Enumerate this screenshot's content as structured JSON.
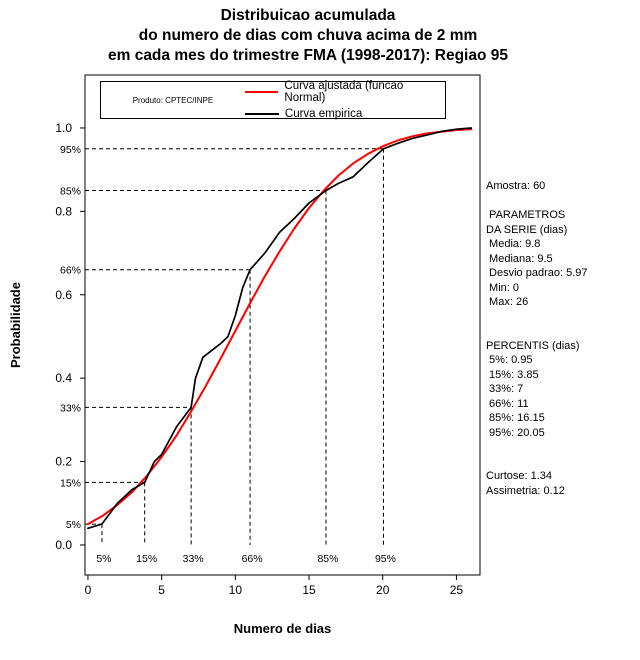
{
  "title": {
    "line1": "Distribuicao acumulada",
    "line2": "do numero de dias com chuva acima de 2 mm",
    "line3": "em cada mes do trimestre FMA (1998-2017): Regiao 95"
  },
  "legend": {
    "product_label": "Produto: CPTEC/INPE",
    "items": [
      {
        "label": "Curva ajustada (funcao Normal)",
        "color": "#ff0000"
      },
      {
        "label": "Curva empirica",
        "color": "#000000"
      }
    ]
  },
  "stats_panel": {
    "lines": [
      "Amostra: 60",
      "",
      " PARAMETROS",
      "DA SERIE (dias)",
      " Media: 9.8",
      " Mediana: 9.5",
      " Desvio padrao: 5.97",
      " Min: 0",
      " Max: 26",
      "",
      "",
      "PERCENTIS (dias)",
      " 5%: 0.95",
      " 15%: 3.85",
      " 33%: 7",
      " 66%: 11",
      " 85%: 16.15",
      " 95%: 20.05",
      "",
      "",
      "Curtose: 1.34",
      "Assimetria: 0.12"
    ]
  },
  "chart_data": {
    "type": "line",
    "title": "Distribuicao acumulada do numero de dias com chuva acima de 2 mm em cada mes do trimestre FMA (1998-2017): Regiao 95",
    "xlabel": "Numero de dias",
    "ylabel": "Probabilidade",
    "xlim": [
      -0.2,
      26.6
    ],
    "ylim": [
      -0.072,
      1.127
    ],
    "xticks": [
      0,
      5,
      10,
      15,
      20,
      25
    ],
    "yticks": [
      0.0,
      0.2,
      0.4,
      0.6,
      0.8,
      1.0
    ],
    "grid": false,
    "legend_position": "top-inside",
    "distribution_stats": {
      "amostra": 60,
      "media": 9.8,
      "mediana": 9.5,
      "desvio_padrao": 5.97,
      "min": 0,
      "max": 26,
      "curtose": 1.34,
      "assimetria": 0.12
    },
    "percentiles": [
      {
        "label": "5%",
        "p": 0.05,
        "days": 0.95
      },
      {
        "label": "15%",
        "p": 0.15,
        "days": 3.85
      },
      {
        "label": "33%",
        "p": 0.33,
        "days": 7
      },
      {
        "label": "66%",
        "p": 0.66,
        "days": 11
      },
      {
        "label": "85%",
        "p": 0.85,
        "days": 16.15
      },
      {
        "label": "95%",
        "p": 0.95,
        "days": 20.05
      }
    ],
    "series": [
      {
        "name": "Curva ajustada (funcao Normal)",
        "color": "#ff0000",
        "x": [
          0,
          1,
          2,
          3,
          4,
          5,
          6,
          7,
          8,
          9,
          10,
          11,
          12,
          13,
          14,
          15,
          16,
          17,
          18,
          19,
          20,
          21,
          22,
          23,
          24,
          25,
          26
        ],
        "y": [
          0.05,
          0.07,
          0.096,
          0.127,
          0.166,
          0.211,
          0.262,
          0.32,
          0.382,
          0.447,
          0.513,
          0.58,
          0.644,
          0.704,
          0.759,
          0.808,
          0.85,
          0.886,
          0.915,
          0.938,
          0.956,
          0.97,
          0.98,
          0.987,
          0.991,
          0.995,
          0.997
        ]
      },
      {
        "name": "Curva empirica",
        "color": "#000000",
        "x": [
          0,
          0.95,
          2,
          3,
          3.85,
          4.5,
          5,
          6,
          7,
          7.3,
          7.8,
          9,
          9.5,
          10,
          10.5,
          11,
          12,
          13,
          14,
          15,
          16.15,
          17,
          18,
          19,
          20.05,
          21,
          22,
          23,
          24,
          25,
          26
        ],
        "y": [
          0.04,
          0.05,
          0.1,
          0.133,
          0.15,
          0.2,
          0.217,
          0.283,
          0.33,
          0.4,
          0.45,
          0.483,
          0.5,
          0.55,
          0.617,
          0.66,
          0.7,
          0.75,
          0.783,
          0.82,
          0.85,
          0.867,
          0.883,
          0.917,
          0.95,
          0.963,
          0.975,
          0.983,
          0.992,
          0.997,
          1.0
        ]
      }
    ]
  }
}
